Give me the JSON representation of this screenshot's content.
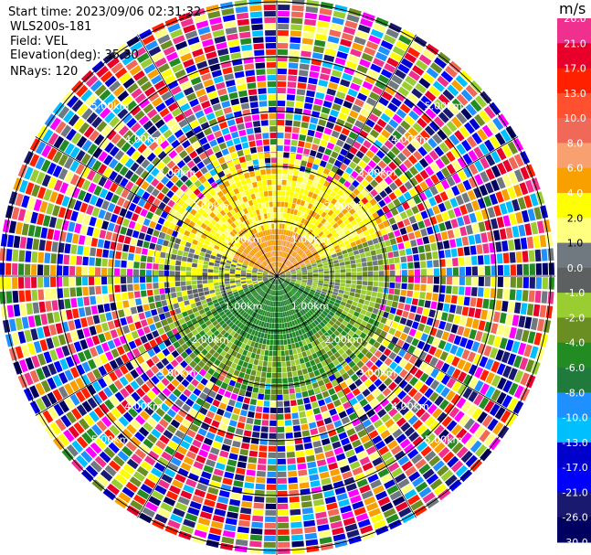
{
  "header": {
    "start_time": "Start time: 2023/09/06 02:31:32",
    "instrument": "WLS200s-181",
    "field": "Field: VEL",
    "elevation": "Elevation(deg): 35.30",
    "nrays": "NRays: 120"
  },
  "colorbar": {
    "title": "m/s",
    "ticks": [
      "26.0",
      "21.0",
      "17.0",
      "13.0",
      "10.0",
      "8.0",
      "6.0",
      "4.0",
      "2.0",
      "1.0",
      "0.0",
      "-1.0",
      "-2.0",
      "-4.0",
      "-6.0",
      "-8.0",
      "-10.0",
      "-13.0",
      "-17.0",
      "-21.0",
      "-26.0",
      "-30.0"
    ],
    "colors": [
      "#f0308e",
      "#e8002a",
      "#ff2000",
      "#ff5030",
      "#f06858",
      "#f8a070",
      "#f8a000",
      "#ffff00",
      "#ffff80",
      "#707880",
      "#5c6060",
      "#9acd32",
      "#6b8e23",
      "#228b22",
      "#1f7a3c",
      "#1e90ff",
      "#00bfff",
      "#0000cd",
      "#0000ff",
      "#191970",
      "#000060"
    ]
  },
  "rings": {
    "labels_1": [
      "1.00km",
      "1.00km",
      "1.00km",
      "1.00km"
    ],
    "labels_2": [
      "2.00km",
      "2.00km",
      "2.00km",
      "2.00km"
    ],
    "labels_3": [
      "3.00km",
      "3.00km",
      "3.00km",
      "3.00km"
    ],
    "labels_4": [
      "4.00km",
      "4.00km",
      "4.00km",
      "4.00km"
    ],
    "labels_5": [
      "5.00km",
      "5.00km",
      "5.00km",
      "5.00km"
    ]
  },
  "chart_data": {
    "type": "heatmap",
    "projection": "polar PPI",
    "field": "VEL",
    "units": "m/s",
    "nrays": 120,
    "range_rings_km": [
      1,
      2,
      3,
      4,
      5
    ],
    "color_scale_range": [
      -30.0,
      26.0
    ],
    "sectors": [
      {
        "direction": "north",
        "dominant_range_m_s": [
          2.0,
          6.0
        ],
        "max_range_km": 2.2
      },
      {
        "direction": "east",
        "dominant_range_m_s": [
          -1.0,
          1.0
        ],
        "max_range_km": 2.0
      },
      {
        "direction": "south",
        "dominant_range_m_s": [
          -6.0,
          -2.0
        ],
        "max_range_km": 2.2
      },
      {
        "direction": "west",
        "dominant_range_m_s": [
          -2.0,
          2.0
        ],
        "max_range_km": 2.0
      }
    ],
    "noise_beyond_km": 3.0
  }
}
